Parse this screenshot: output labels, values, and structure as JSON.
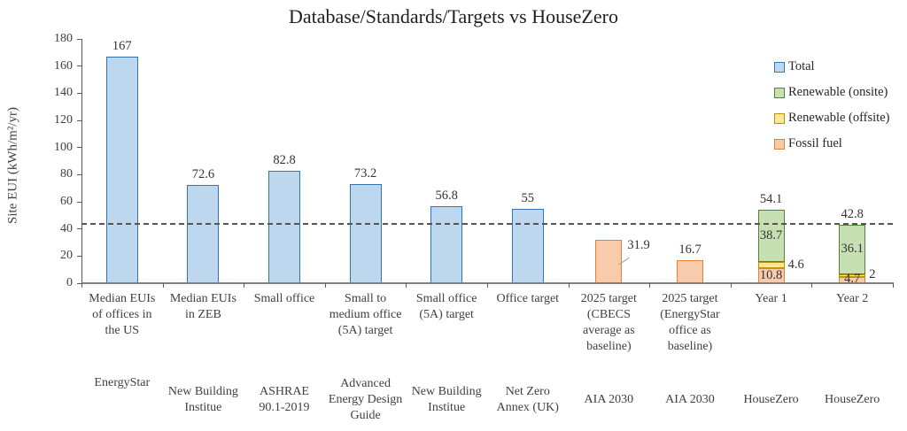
{
  "chart_data": {
    "type": "bar",
    "stacked": true,
    "title": "Database/Standards/Targets vs HouseZero",
    "ylabel": "Site EUI (kWh/m²/yr)",
    "xlabel": "",
    "ylim": [
      0,
      180
    ],
    "yticks": [
      0,
      20,
      40,
      60,
      80,
      100,
      120,
      140,
      160,
      180
    ],
    "grid": false,
    "legend_position": "right",
    "reference_line_value": 44,
    "reference_line_style": "dashed",
    "legend": [
      {
        "name": "Total",
        "fill": "#BDD7EE",
        "border": "#2E75B6"
      },
      {
        "name": "Renewable (onsite)",
        "fill": "#C6E0B4",
        "border": "#538135"
      },
      {
        "name": "Renewable (offsite)",
        "fill": "#FFE699",
        "border": "#BF9000"
      },
      {
        "name": "Fossil fuel",
        "fill": "#F8CBAD",
        "border": "#ED7D31"
      }
    ],
    "categories": [
      {
        "label": "Median EUIs of offices in the US",
        "source": "EnergyStar",
        "segments": [
          {
            "series": "Total",
            "value": 167,
            "label": "167",
            "label_pos": "top"
          }
        ]
      },
      {
        "label": "Median EUIs in ZEB",
        "source": "New Building Institue",
        "segments": [
          {
            "series": "Total",
            "value": 72.6,
            "label": "72.6",
            "label_pos": "top"
          }
        ]
      },
      {
        "label": "Small office",
        "source": "ASHRAE 90.1-2019",
        "segments": [
          {
            "series": "Total",
            "value": 82.8,
            "label": "82.8",
            "label_pos": "top"
          }
        ]
      },
      {
        "label": "Small to medium office (5A) target",
        "source": "Advanced Energy Design Guide",
        "segments": [
          {
            "series": "Total",
            "value": 73.2,
            "label": "73.2",
            "label_pos": "top"
          }
        ]
      },
      {
        "label": "Small office (5A) target",
        "source": "New Building Institue",
        "segments": [
          {
            "series": "Total",
            "value": 56.8,
            "label": "56.8",
            "label_pos": "top"
          }
        ]
      },
      {
        "label": "Office target",
        "source": "Net Zero Annex (UK)",
        "segments": [
          {
            "series": "Total",
            "value": 55,
            "label": "55",
            "label_pos": "top"
          }
        ]
      },
      {
        "label": "2025 target (CBECS average as baseline)",
        "source": "AIA 2030",
        "segments": [
          {
            "series": "Fossil fuel",
            "value": 31.9,
            "label": "31.9",
            "label_pos": "callout"
          }
        ]
      },
      {
        "label": "2025 target (EnergyStar office as baseline)",
        "source": "AIA 2030",
        "segments": [
          {
            "series": "Fossil fuel",
            "value": 16.7,
            "label": "16.7",
            "label_pos": "top"
          }
        ]
      },
      {
        "label": "Year 1",
        "source": "HouseZero",
        "total_label": "54.1",
        "segments": [
          {
            "series": "Fossil fuel",
            "value": 10.8,
            "label": "10.8",
            "label_pos": "inside"
          },
          {
            "series": "Renewable (offsite)",
            "value": 4.6,
            "label": "4.6",
            "label_pos": "right"
          },
          {
            "series": "Renewable (onsite)",
            "value": 38.7,
            "label": "38.7",
            "label_pos": "inside"
          }
        ]
      },
      {
        "label": "Year 2",
        "source": "HouseZero",
        "total_label": "42.8",
        "segments": [
          {
            "series": "Fossil fuel",
            "value": 4.7,
            "label": "4.7",
            "label_pos": "inside"
          },
          {
            "series": "Renewable (offsite)",
            "value": 2,
            "label": "2",
            "label_pos": "right"
          },
          {
            "series": "Renewable (onsite)",
            "value": 36.1,
            "label": "36.1",
            "label_pos": "inside"
          }
        ]
      }
    ]
  }
}
